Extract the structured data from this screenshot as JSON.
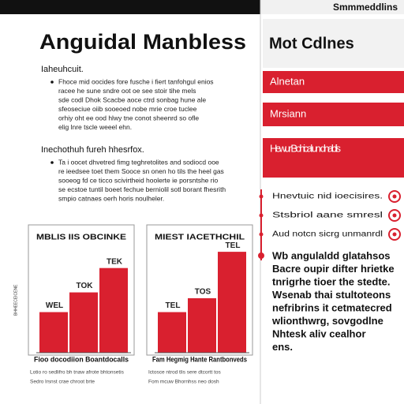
{
  "header": {
    "brand": "Smmmeddlins"
  },
  "main": {
    "title": "Anguidal Manbless",
    "sections": [
      {
        "heading": "Iaheuhcuit.",
        "lines": [
          "Fhoce mid oocides fore fusche i fiert tanfohgul enios",
          "racee he sune sndre oot oe see stoir tihe mels",
          "sde codl Dhok Scacbe aoce ctrd sonbag hune ale",
          "sfeoseciue oiib sooeoed nobe mrie croe tuclee",
          "orhiy oht ee ood hlwy tne conot sheenrd so ofle",
          "elig lnre tscle weeel ehn."
        ]
      },
      {
        "heading": "Inechothuh fureh hhesrfox.",
        "lines": [
          "Ta i oocet dhvetred fimg teghretolites and sodiocd ooe",
          "re ieedsee toet them Sooce sn onen ho tils the heel gas",
          "sooeog fd ce ticco scivirtheid hoolerte ie porsntshe rio",
          "se ecstoe tuntil boeet fechue berniolil sotl borant fhesrith",
          "smpio catnaes oerh horis noulheler."
        ]
      }
    ],
    "side_label": "BHHEECEICENE"
  },
  "charts": [
    {
      "type": "bar",
      "title": "MBLIS IIS OBCINKE",
      "ylim": [
        0,
        100
      ],
      "values": [
        35,
        52,
        73
      ],
      "annotations": [
        "WEL",
        "TOK",
        "TEK"
      ],
      "color": "#d9202f",
      "caption": "Fioo docodiion Boantdocalls",
      "notes": [
        "Lotio ro sedlifro bh tnaw afrote bhtonsetis",
        "Sedro lrsnst crae chroot brte"
      ]
    },
    {
      "type": "bar",
      "title": "MIEST IACETHCHIL",
      "ylim": [
        0,
        100
      ],
      "values": [
        35,
        47,
        87
      ],
      "annotations": [
        "TEL",
        "TOS",
        "TEL"
      ],
      "color": "#d9202f",
      "caption": "Fam Hegmig Hante Rantbonveds",
      "notes": [
        "Ictosce ntrod tlis sere dtcortt tos",
        "Fom mcuw Bhornhss neo dosh"
      ]
    }
  ],
  "sidebar": {
    "title": "Mot Cdlnes",
    "tabs": [
      "Alnetan",
      "Mrsiann",
      "Hewur Bohical un dnablis"
    ],
    "items": [
      "Hnevtuic nid ioecisires.",
      "Stsbriol aane smresl",
      "Aud notcn sicrg unmanrdl"
    ],
    "quote": [
      "Wb angulaldd glatahsos",
      "Bacre oupir difter hrietke",
      "tnrigrhe tioer the stedte.",
      "Wsenab thai stultoteons",
      "nefribrins it cetmatecred",
      "wlionthwrg, sovgodlne",
      "Nhtesk aliv cealhor",
      "ens."
    ]
  }
}
